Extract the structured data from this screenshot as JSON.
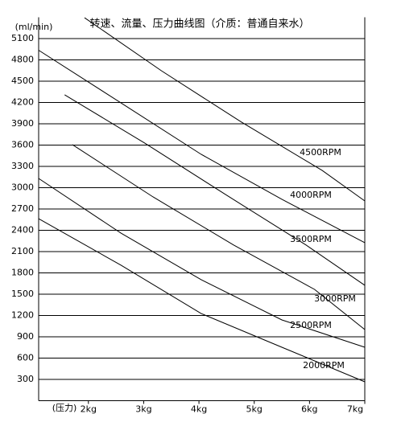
{
  "chart_data": {
    "type": "line",
    "title": "转速、流量、压力曲线图（介质：普通自来水）",
    "y_label": "(ml/min)",
    "x_label": "(压力)",
    "xlim": [
      1.1,
      7
    ],
    "xticks": [
      {
        "value": 2,
        "label": "2kg"
      },
      {
        "value": 3,
        "label": "3kg"
      },
      {
        "value": 4,
        "label": "4kg"
      },
      {
        "value": 5,
        "label": "5kg"
      },
      {
        "value": 6,
        "label": "6kg"
      },
      {
        "value": 7,
        "label": "7kg"
      }
    ],
    "ylim": [
      0,
      5400
    ],
    "yticks": [
      300,
      600,
      900,
      1200,
      1500,
      1800,
      2100,
      2400,
      2700,
      3000,
      3300,
      3600,
      3900,
      4200,
      4500,
      4800,
      5100
    ],
    "grid": true,
    "series": [
      {
        "name": "4500RPM",
        "color": "#000000",
        "x": [
          1.93,
          3.32,
          4.77,
          6.23,
          7.0
        ],
        "values": [
          5394,
          4647,
          3923,
          3243,
          2813
        ]
      },
      {
        "name": "4000RPM",
        "color": "#000000",
        "x": [
          1.1,
          2.59,
          4.04,
          5.5,
          7.0
        ],
        "values": [
          4936,
          4194,
          3470,
          2836,
          2225
        ]
      },
      {
        "name": "3500RPM",
        "color": "#000000",
        "x": [
          1.57,
          3.02,
          4.48,
          5.94,
          7.0
        ],
        "values": [
          4308,
          3628,
          2904,
          2191,
          1625
        ]
      },
      {
        "name": "3000RPM",
        "color": "#000000",
        "x": [
          1.71,
          3.17,
          4.63,
          6.09,
          7.0
        ],
        "values": [
          3606,
          2870,
          2191,
          1568,
          1002
        ]
      },
      {
        "name": "2500RPM",
        "color": "#000000",
        "x": [
          1.1,
          2.59,
          4.04,
          5.5,
          7.0
        ],
        "values": [
          3130,
          2360,
          1704,
          1138,
          753
        ]
      },
      {
        "name": "2000RPM",
        "color": "#000000",
        "x": [
          1.1,
          2.59,
          4.04,
          5.5,
          7.0
        ],
        "values": [
          2564,
          1908,
          1228,
          753,
          266
        ]
      }
    ]
  }
}
